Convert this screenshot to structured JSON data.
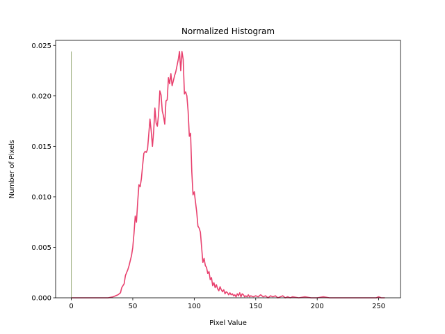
{
  "chart_data": {
    "type": "line",
    "title": "Normalized Histogram",
    "xlabel": "Pixel Value",
    "ylabel": "Number of Pixels",
    "xlim": [
      -12.75,
      267.75
    ],
    "ylim": [
      0,
      0.0255
    ],
    "xticks": [
      0,
      50,
      100,
      150,
      200,
      250
    ],
    "xtick_labels": [
      "0",
      "50",
      "100",
      "150",
      "200",
      "250"
    ],
    "yticks": [
      0,
      0.005,
      0.01,
      0.015,
      0.02,
      0.025
    ],
    "ytick_labels": [
      "0.000",
      "0.005",
      "0.010",
      "0.015",
      "0.020",
      "0.025"
    ],
    "grid": false,
    "legend": "none",
    "series": [
      {
        "color": "#e8416e",
        "points": [
          [
            0,
            0.0
          ],
          [
            10,
            0.0
          ],
          [
            20,
            0.0
          ],
          [
            30,
            0.0
          ],
          [
            34,
            0.0001
          ],
          [
            36,
            0.0002
          ],
          [
            38,
            0.0003
          ],
          [
            40,
            0.0005
          ],
          [
            41,
            0.001
          ],
          [
            42,
            0.0012
          ],
          [
            43,
            0.0014
          ],
          [
            44,
            0.0022
          ],
          [
            45,
            0.0025
          ],
          [
            46,
            0.0028
          ],
          [
            47,
            0.0032
          ],
          [
            48,
            0.0037
          ],
          [
            49,
            0.0042
          ],
          [
            50,
            0.005
          ],
          [
            51,
            0.0064
          ],
          [
            52,
            0.0081
          ],
          [
            53,
            0.0075
          ],
          [
            54,
            0.0095
          ],
          [
            55,
            0.0112
          ],
          [
            56,
            0.011
          ],
          [
            57,
            0.0118
          ],
          [
            58,
            0.0131
          ],
          [
            59,
            0.0143
          ],
          [
            60,
            0.0145
          ],
          [
            61,
            0.0144
          ],
          [
            62,
            0.0147
          ],
          [
            63,
            0.0162
          ],
          [
            64,
            0.0177
          ],
          [
            65,
            0.0165
          ],
          [
            66,
            0.015
          ],
          [
            67,
            0.0165
          ],
          [
            68,
            0.0188
          ],
          [
            69,
            0.0173
          ],
          [
            70,
            0.017
          ],
          [
            71,
            0.0182
          ],
          [
            72,
            0.0205
          ],
          [
            73,
            0.0201
          ],
          [
            74,
            0.0185
          ],
          [
            75,
            0.018
          ],
          [
            76,
            0.0172
          ],
          [
            77,
            0.0195
          ],
          [
            78,
            0.0196
          ],
          [
            79,
            0.0218
          ],
          [
            80,
            0.0212
          ],
          [
            81,
            0.0222
          ],
          [
            82,
            0.021
          ],
          [
            83,
            0.0215
          ],
          [
            84,
            0.022
          ],
          [
            85,
            0.0224
          ],
          [
            86,
            0.023
          ],
          [
            87,
            0.0236
          ],
          [
            88,
            0.0244
          ],
          [
            89,
            0.0225
          ],
          [
            90,
            0.0244
          ],
          [
            91,
            0.0236
          ],
          [
            92,
            0.0202
          ],
          [
            93,
            0.0204
          ],
          [
            94,
            0.02
          ],
          [
            95,
            0.0185
          ],
          [
            96,
            0.016
          ],
          [
            97,
            0.0163
          ],
          [
            98,
            0.0125
          ],
          [
            99,
            0.0102
          ],
          [
            100,
            0.0105
          ],
          [
            101,
            0.0095
          ],
          [
            102,
            0.0085
          ],
          [
            103,
            0.0071
          ],
          [
            104,
            0.0069
          ],
          [
            105,
            0.0065
          ],
          [
            106,
            0.005
          ],
          [
            107,
            0.0035
          ],
          [
            108,
            0.0039
          ],
          [
            109,
            0.0032
          ],
          [
            110,
            0.003
          ],
          [
            111,
            0.0024
          ],
          [
            112,
            0.0026
          ],
          [
            113,
            0.0018
          ],
          [
            114,
            0.002
          ],
          [
            115,
            0.0012
          ],
          [
            116,
            0.0015
          ],
          [
            117,
            0.001
          ],
          [
            118,
            0.0013
          ],
          [
            119,
            0.0009
          ],
          [
            120,
            0.0007
          ],
          [
            121,
            0.0011
          ],
          [
            122,
            0.0008
          ],
          [
            123,
            0.0006
          ],
          [
            124,
            0.0008
          ],
          [
            125,
            0.0004
          ],
          [
            126,
            0.0006
          ],
          [
            127,
            0.0005
          ],
          [
            128,
            0.0003
          ],
          [
            129,
            0.0005
          ],
          [
            130,
            0.0003
          ],
          [
            131,
            0.0004
          ],
          [
            132,
            0.0002
          ],
          [
            133,
            0.0003
          ],
          [
            134,
            0.0001
          ],
          [
            135,
            0.0004
          ],
          [
            136,
            0.0002
          ],
          [
            137,
            0.0005
          ],
          [
            138,
            0.0001
          ],
          [
            139,
            0.0004
          ],
          [
            140,
            0.0003
          ],
          [
            141,
            0.0001
          ],
          [
            142,
            0.0002
          ],
          [
            143,
            0.0001
          ],
          [
            144,
            0.0003
          ],
          [
            145,
            0.0001
          ],
          [
            146,
            0.0002
          ],
          [
            148,
            0.0001
          ],
          [
            150,
            0.0002
          ],
          [
            152,
            0.0001
          ],
          [
            154,
            0.0003
          ],
          [
            156,
            0.0001
          ],
          [
            158,
            0.0002
          ],
          [
            160,
            0.0
          ],
          [
            162,
            0.0002
          ],
          [
            164,
            0.0001
          ],
          [
            166,
            0.0002
          ],
          [
            168,
            0.0
          ],
          [
            170,
            0.0001
          ],
          [
            172,
            0.0002
          ],
          [
            174,
            0.0
          ],
          [
            176,
            0.0001
          ],
          [
            178,
            0.0
          ],
          [
            180,
            0.0001
          ],
          [
            185,
            0.0
          ],
          [
            190,
            0.0001
          ],
          [
            195,
            0.0
          ],
          [
            200,
            0.0
          ],
          [
            205,
            0.0001
          ],
          [
            210,
            0.0
          ],
          [
            220,
            0.0
          ],
          [
            230,
            0.0
          ],
          [
            240,
            0.0
          ],
          [
            248,
            0.0
          ],
          [
            250,
            0.0001
          ],
          [
            252,
            0.0
          ],
          [
            255,
            0.0
          ]
        ]
      },
      {
        "color": "#9aab7a",
        "points": [
          [
            0,
            0.0
          ],
          [
            0,
            0.0244
          ]
        ]
      }
    ]
  }
}
